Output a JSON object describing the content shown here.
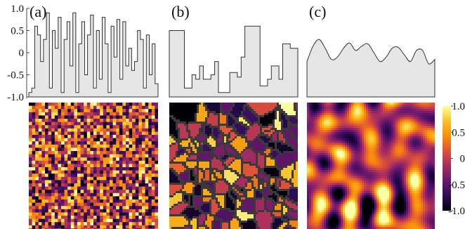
{
  "panel_labels": [
    "(a)",
    "(b)",
    "(c)"
  ],
  "colormap": [
    "#000004",
    "#2d0b59",
    "#6a176e",
    "#a52c60",
    "#dd513a",
    "#f98e09",
    "#fac228",
    "#fcffa4"
  ],
  "profile_fill": "#e6e6e6",
  "profile_stroke": "#333333",
  "chart_data": [
    {
      "type": "line",
      "panel": "(a)",
      "description_of_marks": "step profile above a fine random noise field",
      "ylim": [
        -1.0,
        1.0
      ],
      "yticks": [
        "1.0",
        "0.5",
        "0",
        "-0.5",
        "-1.0"
      ],
      "ytick_values": [
        1.0,
        0.5,
        0,
        -0.5,
        -1.0
      ],
      "values": [
        -0.9,
        -0.8,
        0.6,
        0.4,
        -0.2,
        0.3,
        0.9,
        -0.8,
        0.5,
        0.1,
        0.8,
        -0.9,
        0.3,
        0.7,
        -0.3,
        0.9,
        -0.9,
        0.2,
        0.7,
        -0.5,
        0.4,
        0.85,
        -0.8,
        0.5,
        -0.6,
        0.8,
        0.2,
        -0.9,
        0.6,
        -0.1,
        0.75,
        -0.6,
        0.7,
        -0.3,
        0.1,
        -0.4,
        -0.2,
        0.5,
        0.3,
        -0.8,
        0.4,
        -0.5,
        0.2,
        -0.7
      ]
    },
    {
      "type": "line",
      "panel": "(b)",
      "description_of_marks": "step profile above a Voronoi-cell field",
      "ylim": [
        -1.0,
        1.0
      ],
      "values": [
        0.5,
        0.5,
        0.5,
        0.5,
        -0.8,
        -0.8,
        -0.5,
        -0.6,
        -0.3,
        -0.6,
        -0.6,
        -0.5,
        -0.2,
        -0.9,
        -0.9,
        -0.9,
        -0.45,
        -0.45,
        -0.55,
        -0.1,
        0.6,
        0.6,
        0.6,
        0.6,
        -0.75,
        -0.75,
        -0.6,
        -0.3,
        -0.3,
        -0.6,
        0.2,
        0.2,
        0.1,
        0.1
      ]
    },
    {
      "type": "line",
      "panel": "(c)",
      "description_of_marks": "smooth profile above a smooth random field",
      "ylim": [
        -1.0,
        1.0
      ],
      "values": [
        -0.2,
        0.15,
        0.3,
        0.1,
        -0.15,
        -0.1,
        0.1,
        0.22,
        0.05,
        0.15,
        0.2,
        0.0,
        -0.2,
        -0.1,
        0.1,
        0.12,
        -0.05,
        -0.2,
        0.05,
        0.05,
        -0.25,
        -0.15
      ]
    },
    {
      "type": "heatmap",
      "colorbar": {
        "range": [
          -1.0,
          1.0
        ],
        "ticks": [
          "1.0",
          "0.5",
          "0",
          "-0.5",
          "-1.0"
        ],
        "tick_values": [
          1.0,
          0.5,
          0,
          -0.5,
          -1.0
        ]
      }
    }
  ]
}
